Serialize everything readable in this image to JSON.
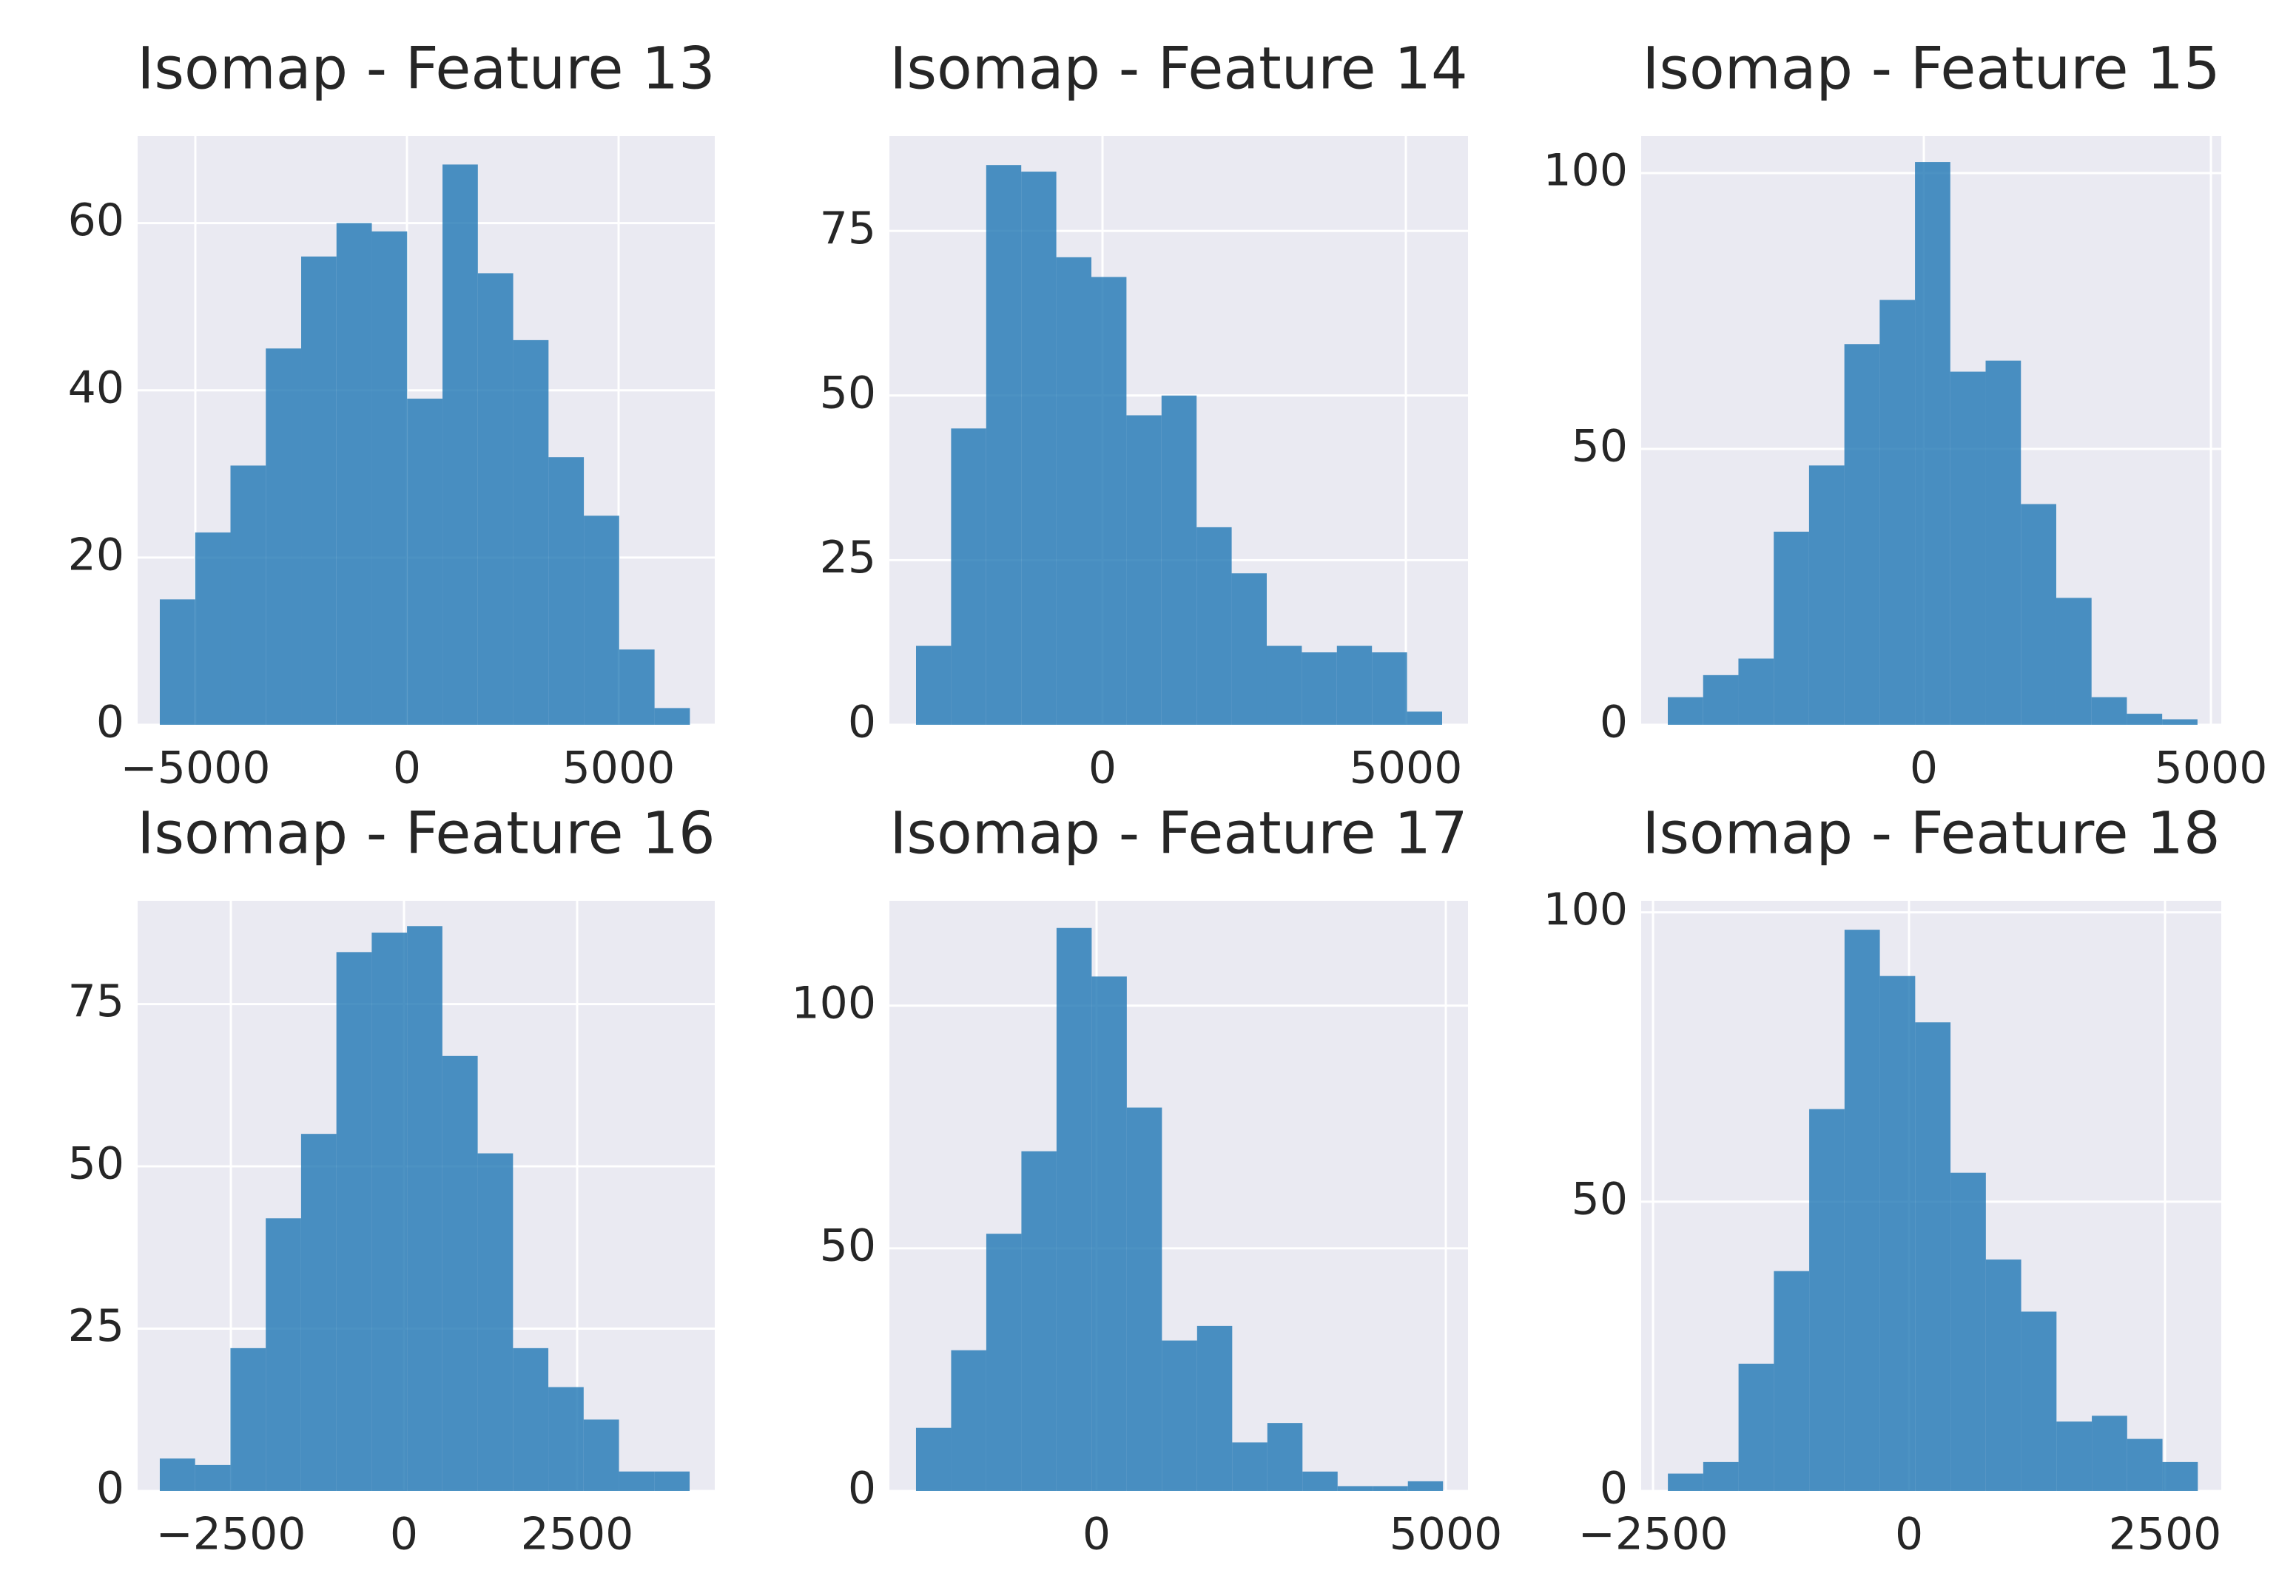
{
  "chart_data": [
    {
      "type": "histogram",
      "title": "Isomap - Feature 13",
      "bins": [
        -5840,
        -5005,
        -4170,
        -3335,
        -2500,
        -1665,
        -830,
        5,
        840,
        1675,
        2510,
        3345,
        4180,
        5015,
        5850,
        6685
      ],
      "values": [
        15,
        23,
        31,
        45,
        56,
        60,
        59,
        39,
        67,
        54,
        46,
        32,
        25,
        9,
        2
      ],
      "color": "#1f77b4",
      "xlim": [
        -6364,
        7273
      ],
      "ylim": [
        0,
        70.4
      ],
      "xticks": [
        {
          "value": -5000,
          "label": "−5000"
        },
        0,
        5000
      ],
      "yticks": [
        0,
        20,
        40,
        60
      ],
      "grid": true
    },
    {
      "type": "histogram",
      "title": "Isomap - Feature 14",
      "bins": [
        -3073,
        -2495,
        -1917,
        -1339,
        -761,
        -183,
        395,
        973,
        1551,
        2129,
        2707,
        3285,
        3863,
        4441,
        5019,
        5597
      ],
      "values": [
        12,
        45,
        85,
        84,
        71,
        68,
        47,
        50,
        30,
        23,
        12,
        11,
        12,
        11,
        2
      ],
      "color": "#1f77b4",
      "xlim": [
        -3512,
        6024
      ],
      "ylim": [
        0,
        89.4
      ],
      "xticks": [
        0,
        5000
      ],
      "yticks": [
        0,
        25,
        50,
        75
      ],
      "grid": true
    },
    {
      "type": "histogram",
      "title": "Isomap - Feature 15",
      "bins": [
        -4459,
        -3844,
        -3229,
        -2614,
        -1999,
        -1384,
        -769,
        -154,
        461,
        1076,
        1691,
        2306,
        2921,
        3536,
        4151,
        4766
      ],
      "values": [
        5,
        9,
        12,
        35,
        47,
        69,
        77,
        102,
        64,
        66,
        40,
        23,
        5,
        2,
        1
      ],
      "color": "#1f77b4",
      "xlim": [
        -4923,
        5180
      ],
      "ylim": [
        0,
        106.7
      ],
      "xticks": [
        0,
        5000
      ],
      "yticks": [
        0,
        50,
        100
      ],
      "grid": true
    },
    {
      "type": "histogram",
      "title": "Isomap - Feature 16",
      "bins": [
        -3526,
        -3016,
        -2506,
        -1996,
        -1486,
        -976,
        -466,
        44,
        554,
        1064,
        1574,
        2084,
        2594,
        3104,
        3614,
        4124
      ],
      "values": [
        5,
        4,
        22,
        42,
        55,
        83,
        86,
        87,
        67,
        52,
        22,
        16,
        11,
        3,
        3
      ],
      "color": "#1f77b4",
      "xlim": [
        -3846,
        4487
      ],
      "ylim": [
        0,
        90.9
      ],
      "xticks": [
        {
          "value": -2500,
          "label": "−2500"
        },
        0,
        2500
      ],
      "yticks": [
        0,
        25,
        50,
        75
      ],
      "grid": true
    },
    {
      "type": "histogram",
      "title": "Isomap - Feature 17",
      "bins": [
        -2585,
        -2082,
        -1579,
        -1076,
        -573,
        -70,
        433,
        936,
        1439,
        1942,
        2445,
        2948,
        3451,
        3954,
        4457,
        4960
      ],
      "values": [
        13,
        29,
        53,
        70,
        116,
        106,
        79,
        31,
        34,
        10,
        14,
        4,
        1,
        1,
        2
      ],
      "color": "#1f77b4",
      "xlim": [
        -2966,
        5318
      ],
      "ylim": [
        0,
        121.6
      ],
      "xticks": [
        0,
        5000
      ],
      "yticks": [
        0,
        50,
        100
      ],
      "grid": true
    },
    {
      "type": "histogram",
      "title": "Isomap - Feature 18",
      "bins": [
        -2355,
        -2010,
        -1665,
        -1320,
        -975,
        -630,
        -285,
        60,
        405,
        750,
        1095,
        1440,
        1785,
        2130,
        2475,
        2820
      ],
      "values": [
        3,
        5,
        22,
        38,
        66,
        97,
        89,
        81,
        55,
        40,
        31,
        12,
        13,
        9,
        5
      ],
      "color": "#1f77b4",
      "xlim": [
        -2616,
        3049
      ],
      "ylim": [
        0,
        102
      ],
      "xticks": [
        {
          "value": -2500,
          "label": "−2500"
        },
        0,
        2500
      ],
      "yticks": [
        0,
        50,
        100
      ],
      "grid": true
    }
  ]
}
